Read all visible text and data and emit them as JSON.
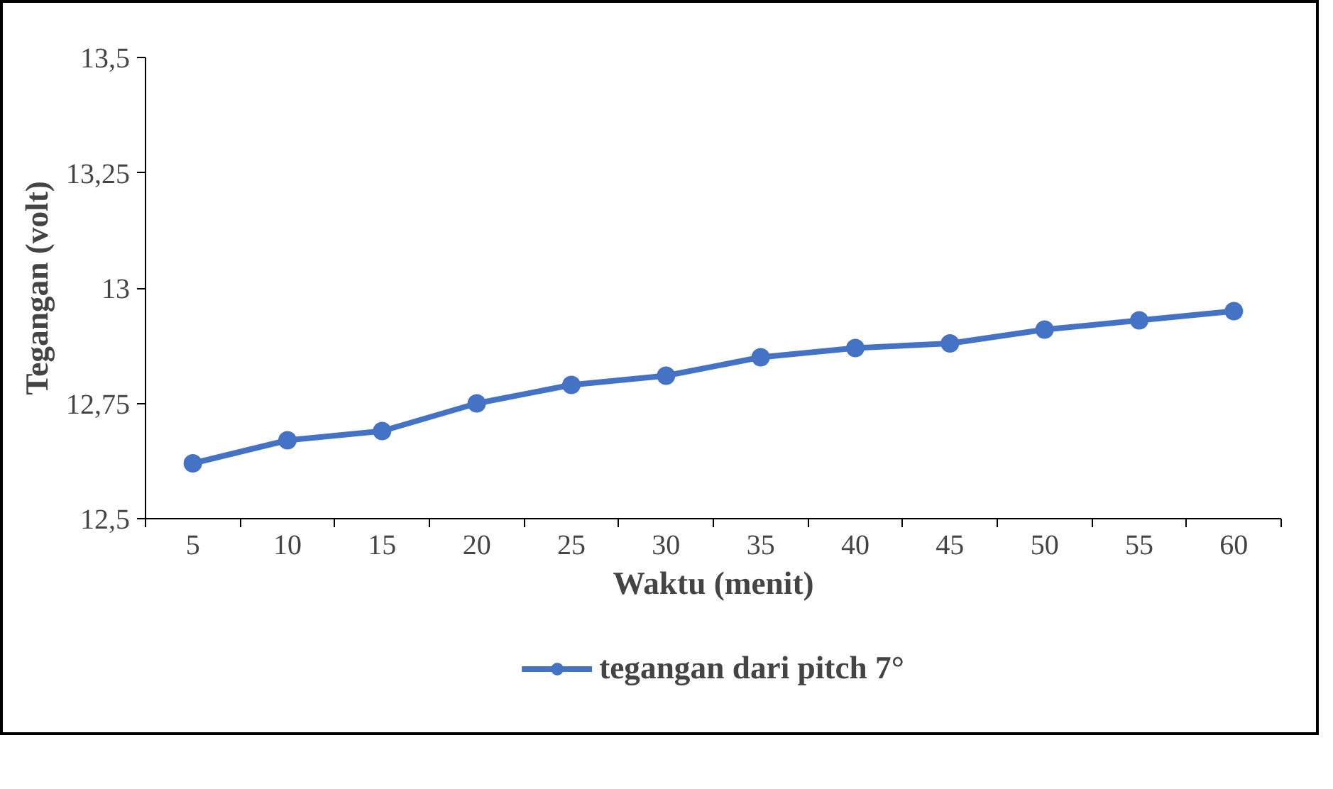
{
  "chart_data": {
    "type": "line",
    "xlabel": "Waktu (menit)",
    "ylabel": "Tegangan (volt)",
    "categories": [
      "5",
      "10",
      "15",
      "20",
      "25",
      "30",
      "35",
      "40",
      "45",
      "50",
      "55",
      "60"
    ],
    "series": [
      {
        "name": "tegangan dari pitch 7°",
        "color": "#4472c4",
        "values": [
          12.62,
          12.67,
          12.69,
          12.75,
          12.79,
          12.81,
          12.85,
          12.87,
          12.88,
          12.91,
          12.93,
          12.95
        ]
      }
    ],
    "ylim": [
      12.5,
      13.5
    ],
    "yticks": [
      {
        "value": 12.5,
        "label": "12,5"
      },
      {
        "value": 12.75,
        "label": "12,75"
      },
      {
        "value": 13,
        "label": "13"
      },
      {
        "value": 13.25,
        "label": "13,25"
      },
      {
        "value": 13.5,
        "label": "13,5"
      }
    ],
    "grid": false,
    "legend": "bottom",
    "marker": "circle",
    "line_style": "solid"
  }
}
